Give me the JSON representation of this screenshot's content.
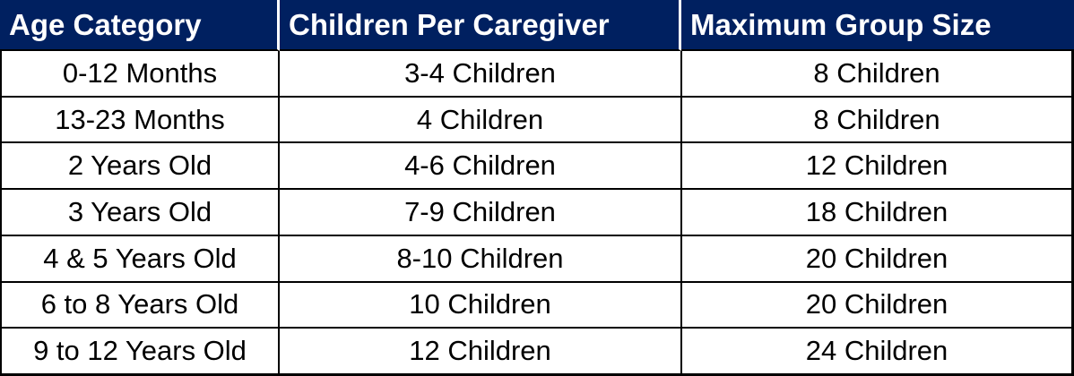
{
  "chart_data": {
    "type": "table",
    "columns": [
      "Age Category",
      "Children Per Caregiver",
      "Maximum Group Size"
    ],
    "rows": [
      [
        "0-12 Months",
        "3-4 Children",
        "8 Children"
      ],
      [
        "13-23 Months",
        "4 Children",
        "8 Children"
      ],
      [
        "2 Years Old",
        "4-6 Children",
        "12 Children"
      ],
      [
        "3 Years Old",
        "7-9 Children",
        "18 Children"
      ],
      [
        "4 & 5 Years Old",
        "8-10 Children",
        "20 Children"
      ],
      [
        "6 to 8 Years Old",
        "10 Children",
        "20 Children"
      ],
      [
        "9 to 12 Years Old",
        "12 Children",
        "24 Children"
      ]
    ],
    "layout": {
      "grid": true,
      "header_position": "top"
    }
  },
  "colors": {
    "header_bg": "#002060",
    "header_text": "#FFFFFF",
    "body_bg": "#FFFFFF",
    "body_text": "#000000",
    "border": "#000000",
    "header_divider": "#FFFFFF"
  }
}
